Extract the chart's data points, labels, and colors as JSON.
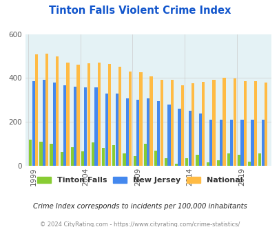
{
  "title": "Tinton Falls Violent Crime Index",
  "years": [
    1999,
    2000,
    2001,
    2002,
    2003,
    2004,
    2005,
    2006,
    2007,
    2008,
    2009,
    2010,
    2011,
    2012,
    2013,
    2014,
    2015,
    2016,
    2017,
    2018,
    2019,
    2020,
    2021
  ],
  "tinton_falls": [
    120,
    110,
    100,
    62,
    85,
    65,
    105,
    80,
    95,
    55,
    45,
    100,
    70,
    35,
    10,
    35,
    50,
    15,
    25,
    55,
    50,
    20,
    55
  ],
  "new_jersey": [
    385,
    393,
    378,
    365,
    360,
    358,
    358,
    328,
    328,
    308,
    302,
    308,
    293,
    280,
    260,
    250,
    238,
    210,
    210,
    210,
    210,
    210,
    210
  ],
  "national": [
    508,
    510,
    497,
    470,
    462,
    468,
    469,
    464,
    450,
    430,
    425,
    407,
    393,
    390,
    367,
    376,
    383,
    390,
    401,
    397,
    384,
    384,
    380
  ],
  "colors": {
    "tinton_falls": "#88cc33",
    "new_jersey": "#4488ee",
    "national": "#ffbb44"
  },
  "background_color": "#e4f2f5",
  "ylim": [
    0,
    600
  ],
  "yticks": [
    0,
    200,
    400,
    600
  ],
  "title_color": "#1155cc",
  "subtitle": "Crime Index corresponds to incidents per 100,000 inhabitants",
  "footer": "© 2024 CityRating.com - https://www.cityrating.com/crime-statistics/",
  "legend_labels": [
    "Tinton Falls",
    "New Jersey",
    "National"
  ],
  "tick_years": [
    1999,
    2004,
    2009,
    2014,
    2019
  ]
}
